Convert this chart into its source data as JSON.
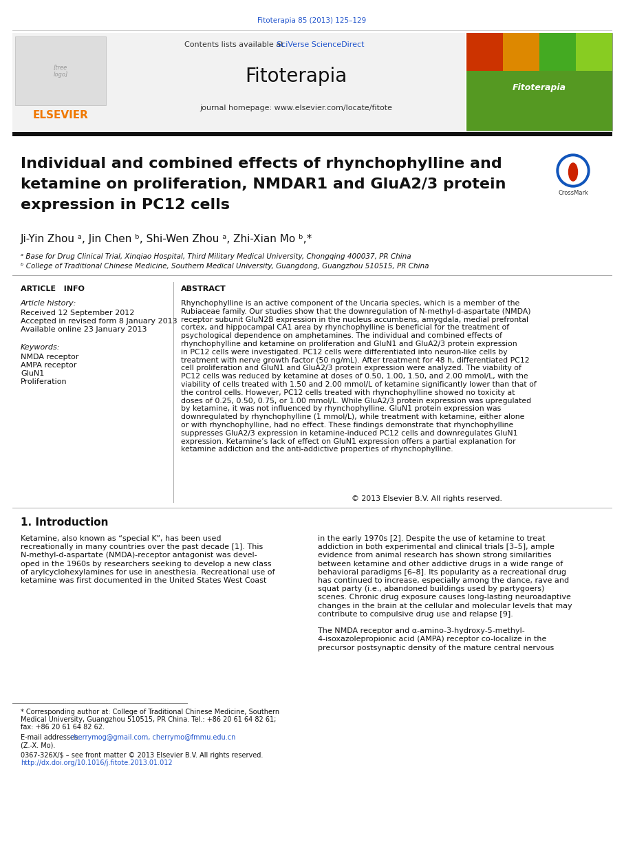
{
  "page_width": 9.07,
  "page_height": 12.37,
  "bg_color": "#ffffff",
  "top_journal_ref": "Fitoterapia 85 (2013) 125–129",
  "top_journal_ref_color": "#2255cc",
  "sciverse_color": "#2255cc",
  "journal_name": "Fitoterapia",
  "journal_homepage": "journal homepage: www.elsevier.com/locate/fitote",
  "elsevier_color": "#f07800",
  "article_title_line1": "Individual and combined effects of rhynchophylline and",
  "article_title_line2": "ketamine on proliferation, NMDAR1 and GluA2/3 protein",
  "article_title_line3": "expression in PC12 cells",
  "affiliation_a": "ᵃ Base for Drug Clinical Trial, Xinqiao Hospital, Third Military Medical University, Chongqing 400037, PR China",
  "affiliation_b": "ᵇ College of Traditional Chinese Medicine, Southern Medical University, Guangdong, Guangzhou 510515, PR China",
  "article_info_title": "ARTICLE   INFO",
  "abstract_title": "ABSTRACT",
  "article_history_title": "Article history:",
  "received_line": "Received 12 September 2012",
  "accepted_line": "Accepted in revised form 8 January 2013",
  "available_line": "Available online 23 January 2013",
  "keywords_title": "Keywords:",
  "keyword1": "NMDA receptor",
  "keyword2": "AMPA receptor",
  "keyword3": "GluN1",
  "keyword4": "Proliferation",
  "abstract_text": "Rhynchophylline is an active component of the Uncaria species, which is a member of the\nRubiaceae family. Our studies show that the downregulation of N-methyl-d-aspartate (NMDA)\nreceptor subunit GluN2B expression in the nucleus accumbens, amygdala, medial prefrontal\ncortex, and hippocampal CA1 area by rhynchophylline is beneficial for the treatment of\npsychological dependence on amphetamines. The individual and combined effects of\nrhynchophylline and ketamine on proliferation and GluN1 and GluA2/3 protein expression\nin PC12 cells were investigated. PC12 cells were differentiated into neuron-like cells by\ntreatment with nerve growth factor (50 ng/mL). After treatment for 48 h, differentiated PC12\ncell proliferation and GluN1 and GluA2/3 protein expression were analyzed. The viability of\nPC12 cells was reduced by ketamine at doses of 0.50, 1.00, 1.50, and 2.00 mmol/L, with the\nviability of cells treated with 1.50 and 2.00 mmol/L of ketamine significantly lower than that of\nthe control cells. However, PC12 cells treated with rhynchophylline showed no toxicity at\ndoses of 0.25, 0.50, 0.75, or 1.00 mmol/L. While GluA2/3 protein expression was upregulated\nby ketamine, it was not influenced by rhynchophylline. GluN1 protein expression was\ndownregulated by rhynchophylline (1 mmol/L), while treatment with ketamine, either alone\nor with rhynchophylline, had no effect. These findings demonstrate that rhynchophylline\nsuppresses GluA2/3 expression in ketamine-induced PC12 cells and downregulates GluN1\nexpression. Ketamine’s lack of effect on GluN1 expression offers a partial explanation for\nketamine addiction and the anti-addictive properties of rhynchophylline.",
  "copyright_line": "© 2013 Elsevier B.V. All rights reserved.",
  "intro_title": "1. Introduction",
  "intro_col1_lines": [
    "Ketamine, also known as “special K”, has been used",
    "recreationally in many countries over the past decade [1]. This",
    "N-methyl-d-aspartate (NMDA)-receptor antagonist was devel-",
    "oped in the 1960s by researchers seeking to develop a new class",
    "of arylcyclohexylamines for use in anesthesia. Recreational use of",
    "ketamine was first documented in the United States West Coast"
  ],
  "intro_col2_lines": [
    "in the early 1970s [2]. Despite the use of ketamine to treat",
    "addiction in both experimental and clinical trials [3–5], ample",
    "evidence from animal research has shown strong similarities",
    "between ketamine and other addictive drugs in a wide range of",
    "behavioral paradigms [6–8]. Its popularity as a recreational drug",
    "has continued to increase, especially among the dance, rave and",
    "squat party (i.e., abandoned buildings used by partygoers)",
    "scenes. Chronic drug exposure causes long-lasting neuroadaptive",
    "changes in the brain at the cellular and molecular levels that may",
    "contribute to compulsive drug use and relapse [9].",
    "",
    "The NMDA receptor and α-amino-3-hydroxy-5-methyl-",
    "4-isoxazolepropionic acid (AMPA) receptor co-localize in the",
    "precursor postsynaptic density of the mature central nervous"
  ],
  "footnote_star_lines": [
    "* Corresponding author at: College of Traditional Chinese Medicine, Southern",
    "Medical University, Guangzhou 510515, PR China. Tel.: +86 20 61 64 82 61;",
    "fax: +86 20 61 64 82 62."
  ],
  "footnote_email_prefix": "E-mail addresses: ",
  "footnote_email_addr": "cherrymog@gmail.com, cherrymo@fmmu.edu.cn",
  "footnote_email_suffix": "(Z.-X. Mo).",
  "footnote_issn": "0367-326X/$ – see front matter © 2013 Elsevier B.V. All rights reserved.",
  "footnote_doi": "http://dx.doi.org/10.1016/j.fitote.2013.01.012",
  "cover_colors": [
    "#cc3300",
    "#dd8800",
    "#44aa22",
    "#88cc22"
  ],
  "cover_green": "#559922",
  "black_rule": "#111111",
  "light_grey": "#f2f2f2",
  "med_grey": "#aaaaaa",
  "dark_text": "#111111"
}
